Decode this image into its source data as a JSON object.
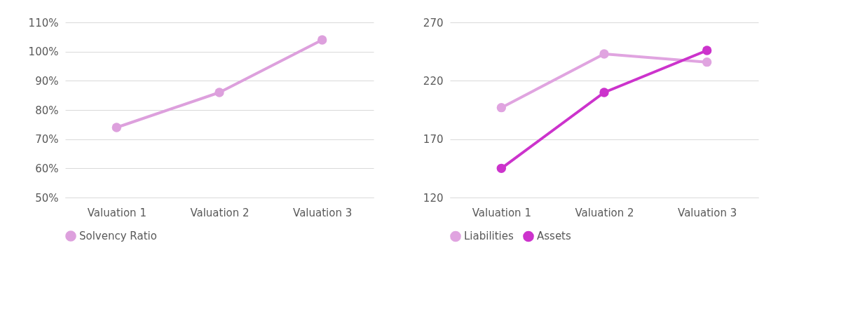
{
  "chart_data": [
    {
      "type": "line",
      "categories": [
        "Valuation 1",
        "Valuation 2",
        "Valuation 3"
      ],
      "series": [
        {
          "name": "Solvency Ratio",
          "color": "#dda0dd",
          "values": [
            74,
            86,
            104
          ]
        }
      ],
      "ylim": [
        50,
        110
      ],
      "yticks": [
        {
          "value": 50,
          "label": "50%"
        },
        {
          "value": 60,
          "label": "60%"
        },
        {
          "value": 70,
          "label": "70%"
        },
        {
          "value": 80,
          "label": "80%"
        },
        {
          "value": 90,
          "label": "90%"
        },
        {
          "value": 100,
          "label": "100%"
        },
        {
          "value": 110,
          "label": "110%"
        }
      ],
      "grid": "y",
      "legend": "bottom",
      "marker": "circle",
      "line_style": "solid"
    },
    {
      "type": "line",
      "categories": [
        "Valuation 1",
        "Valuation 2",
        "Valuation 3"
      ],
      "series": [
        {
          "name": "Liabilities",
          "color": "#e0a4e0",
          "values": [
            197,
            243,
            236
          ]
        },
        {
          "name": "Assets",
          "color": "#cc33cc",
          "values": [
            145,
            210,
            246
          ]
        }
      ],
      "ylim": [
        120,
        270
      ],
      "yticks": [
        120,
        170,
        220,
        270
      ],
      "grid": "y",
      "legend": "bottom",
      "marker": "circle",
      "line_style": "solid"
    }
  ]
}
